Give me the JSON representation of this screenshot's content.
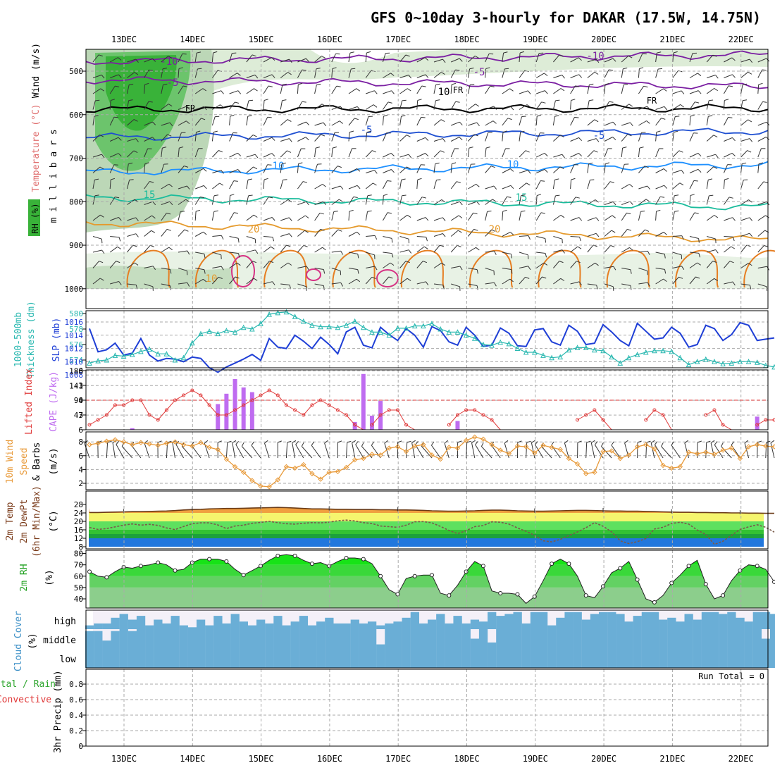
{
  "header": {
    "title": "GFS 0~10day 3-hourly for DAKAR (17.5W, 14.75N)"
  },
  "colors": {
    "cross_section": [
      "#7b1fa2",
      "#000000",
      "#1e4fd1",
      "#1e90ff",
      "#1abc9c",
      "#e59a2c",
      "#e67e22",
      "#d63384"
    ],
    "rh_shading": [
      "#d9ead3",
      "#bcd7b7",
      "#8fcf8f",
      "#6cc46c",
      "#39b239"
    ],
    "slp": "#1f3fd6",
    "thickness": "#29b8b0",
    "lifted_index": "#e03a3a",
    "cape": "#bf6cf0",
    "wind_speed": "#e89a3a",
    "temp_bands": [
      "#2277dd",
      "#1ca13c",
      "#33c233",
      "#5fe05f",
      "#f5f56e",
      "#f0a040"
    ],
    "rh_fill": [
      "#8cce8c",
      "#63d163",
      "#3ad83a",
      "#17e317"
    ],
    "cloud": "#6aaed6",
    "grid": "#aaaaaa"
  },
  "chart_data": [
    {
      "panel": "cross_section",
      "type": "line",
      "ylabel": "m i l l i b a r s",
      "ylabel_parts": [
        "Wind (m/s)",
        "Temperature (°C)",
        "RH (%)"
      ],
      "y_ticks": [
        "500",
        "600",
        "700",
        "800",
        "900",
        "1000"
      ],
      "ylim": [
        450,
        1030
      ],
      "x_tick_labels": [
        "13DEC",
        "14DEC",
        "15DEC",
        "16DEC",
        "17DEC",
        "18DEC",
        "19DEC",
        "20DEC",
        "21DEC",
        "22DEC"
      ],
      "contour_labels": [
        "-10",
        "-10",
        "-5",
        "-5",
        "FR",
        "FR",
        "FR",
        "-5",
        "-5",
        "10",
        "10",
        "15",
        "15",
        "20",
        "20",
        "10",
        "10"
      ],
      "isotherms": [
        {
          "level": -10,
          "color": "#7b1fa2",
          "p_start": 478,
          "p_end": 462
        },
        {
          "level": -5,
          "color": "#7b1fa2",
          "p_start": 520,
          "p_end": 535
        },
        {
          "level": 0,
          "color": "#000000",
          "p_start": 588,
          "p_end": 585
        },
        {
          "level": 5,
          "color": "#1e4fd1",
          "p_start": 652,
          "p_end": 638
        },
        {
          "level": 10,
          "color": "#1e90ff",
          "p_start": 732,
          "p_end": 715
        },
        {
          "level": 15,
          "color": "#1abc9c",
          "p_start": 790,
          "p_end": 812
        },
        {
          "level": 20,
          "color": "#e59a2c",
          "p_start": 848,
          "p_end": 888
        }
      ]
    },
    {
      "panel": "slp_thickness",
      "type": "line",
      "ylabel_left": [
        "1000-500mb",
        "Thickness (dm)"
      ],
      "ylabel_right": "SLP (mb)",
      "y_ticks_left": [
        "574",
        "576",
        "578",
        "580"
      ],
      "y_ticks_right": [
        "1008",
        "1010",
        "1012",
        "1014",
        "1016"
      ],
      "series": [
        {
          "name": "SLP (mb)",
          "values": [
            1015.0,
            1011.5,
            1011.8,
            1012.8,
            1011.0,
            1011.3,
            1013.5,
            1011.0,
            1010.1,
            1010.5,
            1010.4,
            1010.0,
            1010.7,
            1010.5,
            1009.1,
            1008.4,
            1009.2,
            1009.8,
            1010.4,
            1011.1,
            1010.2,
            1013.5,
            1012.2,
            1012.0,
            1014.0,
            1013.1,
            1012.0,
            1013.7,
            1012.6,
            1011.2,
            1014.5,
            1015.2,
            1012.5,
            1012.1,
            1015.2,
            1014.1,
            1013.2,
            1015.0,
            1014.0,
            1012.2,
            1015.3,
            1014.7,
            1013.0,
            1012.5,
            1015.2,
            1014.0,
            1012.3,
            1012.5,
            1015.1,
            1014.3,
            1012.4,
            1012.3,
            1014.8,
            1015.0,
            1013.0,
            1012.5,
            1015.5,
            1014.6,
            1012.6,
            1012.8,
            1015.6,
            1014.5,
            1013.2,
            1012.4,
            1015.8,
            1014.6,
            1013.4,
            1013.6,
            1015.2,
            1014.3,
            1012.2,
            1012.6,
            1015.5,
            1015.0,
            1013.2,
            1014.1,
            1015.9,
            1015.5,
            1013.2,
            1013.4,
            1013.6
          ]
        },
        {
          "name": "1000-500mb Thickness (dm)",
          "values": [
            573.6,
            573.9,
            574.0,
            574.6,
            574.5,
            574.7,
            575.1,
            575.4,
            574.8,
            574.8,
            574.0,
            574.3,
            576.2,
            577.4,
            577.7,
            577.4,
            577.8,
            577.6,
            578.2,
            578.0,
            578.7,
            579.9,
            580.1,
            580.2,
            579.6,
            579.0,
            578.5,
            578.3,
            578.3,
            578.2,
            578.5,
            579.0,
            578.2,
            577.6,
            577.6,
            577.2,
            578.1,
            578.1,
            578.4,
            578.4,
            578.7,
            578.0,
            577.6,
            577.6,
            577.2,
            576.8,
            576.0,
            575.9,
            576.3,
            576.1,
            575.5,
            575.0,
            575.0,
            574.6,
            574.3,
            574.4,
            575.3,
            575.6,
            575.6,
            575.3,
            575.2,
            574.4,
            573.6,
            574.3,
            574.7,
            575.0,
            575.2,
            575.2,
            575.1,
            574.3,
            573.4,
            573.8,
            574.1,
            573.8,
            573.5,
            573.6,
            573.8,
            573.8,
            573.7,
            573.3,
            573.1
          ]
        }
      ]
    },
    {
      "panel": "lifted_index_cape",
      "type": "bar",
      "ylabel_left": "Lifted Index",
      "ylabel_right": "CAPE (J/kg)",
      "y_ticks_left": [
        "-6",
        "-3",
        "0",
        "3",
        "6"
      ],
      "y_ticks_right": [
        "188",
        "141",
        "94",
        "47"
      ],
      "series": [
        {
          "name": "Lifted Index",
          "values": [
            5,
            4,
            3,
            1,
            1,
            0,
            0,
            3,
            4,
            2,
            0,
            -1,
            -2,
            -1,
            1,
            3,
            3,
            2,
            1,
            0,
            -1,
            -2,
            -1,
            1,
            2,
            3,
            1,
            0,
            1,
            2,
            3,
            5,
            6,
            5,
            3,
            2,
            2,
            5,
            6,
            6,
            6,
            6,
            5,
            3,
            2,
            2,
            3,
            4,
            6,
            6,
            6,
            6,
            6,
            6,
            6,
            6,
            6,
            4,
            3,
            2,
            4,
            6,
            6,
            6,
            6,
            4,
            2,
            3,
            6,
            6,
            6,
            6,
            3,
            2,
            5,
            6,
            6,
            6,
            5,
            4,
            4
          ]
        },
        {
          "name": "CAPE (J/kg)",
          "values": [
            0,
            0,
            0,
            0,
            0,
            5,
            0,
            0,
            0,
            0,
            0,
            0,
            0,
            0,
            0,
            82,
            115,
            162,
            135,
            120,
            0,
            0,
            0,
            0,
            0,
            0,
            0,
            0,
            0,
            0,
            0,
            25,
            178,
            45,
            92,
            0,
            0,
            0,
            0,
            0,
            0,
            0,
            0,
            28,
            0,
            0,
            0,
            0,
            0,
            0,
            0,
            0,
            0,
            0,
            0,
            0,
            0,
            0,
            0,
            0,
            0,
            0,
            0,
            0,
            0,
            0,
            0,
            0,
            0,
            0,
            0,
            0,
            0,
            0,
            0,
            0,
            0,
            0,
            42,
            0,
            0
          ]
        }
      ]
    },
    {
      "panel": "wind_10m",
      "type": "line",
      "ylabel": [
        "10m Wind",
        "Speed",
        "& Barbs",
        "(m/s)"
      ],
      "y_ticks": [
        "2",
        "4",
        "6",
        "8"
      ],
      "series": [
        {
          "name": "Speed",
          "values": [
            7.6,
            7.8,
            8.1,
            8.3,
            8.0,
            7.6,
            7.9,
            7.7,
            7.5,
            7.8,
            8.0,
            7.6,
            7.4,
            7.9,
            7.2,
            6.9,
            5.5,
            4.4,
            3.6,
            2.4,
            1.6,
            1.5,
            2.5,
            4.4,
            4.2,
            4.7,
            3.4,
            2.6,
            3.6,
            3.7,
            4.3,
            5.4,
            5.6,
            6.2,
            6.1,
            7.1,
            7.3,
            6.6,
            7.4,
            7.6,
            6.1,
            5.5,
            7.2,
            7.1,
            8.2,
            8.7,
            8.4,
            7.6,
            6.8,
            6.3,
            7.4,
            7.3,
            6.4,
            7.5,
            7.2,
            6.9,
            5.6,
            4.8,
            3.4,
            3.6,
            6.6,
            6.7,
            5.6,
            6.1,
            7.3,
            7.6,
            7.0,
            4.6,
            4.2,
            4.4,
            6.5,
            6.3,
            6.5,
            6.2,
            6.8,
            7.1,
            5.6,
            7.3,
            7.6,
            7.4,
            7.3
          ]
        }
      ]
    },
    {
      "panel": "temperature_2m",
      "type": "area",
      "ylabel": [
        "2m Temp",
        "2m DewPt",
        "(6hr Min/Max)",
        "(°C)"
      ],
      "y_ticks": [
        "8",
        "12",
        "16",
        "20",
        "24",
        "28"
      ],
      "series": [
        {
          "name": "2m Temp",
          "values": [
            24.2,
            24.2,
            24.3,
            24.4,
            24.5,
            24.6,
            24.6,
            24.7,
            24.8,
            24.9,
            25.1,
            25.4,
            25.6,
            25.7,
            25.9,
            26.0,
            26.1,
            26.1,
            26.2,
            26.3,
            26.4,
            26.5,
            26.6,
            26.5,
            26.3,
            26.1,
            25.9,
            25.9,
            25.8,
            25.7,
            25.7,
            25.6,
            25.6,
            25.6,
            25.5,
            25.5,
            25.4,
            25.4,
            25.3,
            25.2,
            25.0,
            24.9,
            24.8,
            24.8,
            24.9,
            25.0,
            25.2,
            25.3,
            25.3,
            25.2,
            25.0,
            24.9,
            24.8,
            24.8,
            24.9,
            25.0,
            25.1,
            25.2,
            25.2,
            25.1,
            25.0,
            24.9,
            24.9,
            24.8,
            24.8,
            24.7,
            24.6,
            24.5,
            24.4,
            24.3,
            24.3,
            24.2,
            24.2,
            24.1,
            24.1,
            24.0,
            24.0,
            23.9,
            23.9,
            23.8,
            23.8
          ]
        },
        {
          "name": "2m DewPt",
          "values": [
            17.1,
            16.2,
            16.6,
            17.4,
            18.2,
            18.8,
            18.2,
            18.6,
            18.1,
            16.9,
            16.1,
            17.6,
            18.9,
            19.3,
            19.3,
            18.3,
            16.6,
            17.8,
            18.2,
            19.1,
            19.5,
            20.0,
            19.4,
            18.9,
            18.7,
            19.1,
            19.4,
            19.3,
            19.6,
            20.3,
            20.6,
            20.2,
            19.4,
            19.0,
            17.8,
            17.5,
            17.2,
            18.2,
            19.8,
            19.9,
            19.3,
            17.6,
            15.7,
            14.2,
            15.6,
            17.5,
            18.0,
            19.8,
            19.6,
            18.7,
            16.9,
            15.3,
            13.4,
            10.8,
            10.3,
            11.5,
            13.3,
            15.0,
            17.0,
            19.4,
            17.7,
            15.0,
            10.8,
            9.5,
            10.4,
            11.9,
            16.4,
            17.2,
            19.0,
            19.6,
            18.7,
            15.9,
            13.8,
            9.1,
            10.6,
            13.4,
            16.2,
            17.4,
            18.4,
            17.2,
            14.9
          ]
        }
      ]
    },
    {
      "panel": "rh_2m",
      "type": "area",
      "ylabel": [
        "2m RH",
        "(%)"
      ],
      "y_ticks": [
        "40",
        "50",
        "60",
        "70",
        "80"
      ],
      "series": [
        {
          "name": "2m RH",
          "values": [
            64,
            60,
            59,
            64,
            68,
            67,
            69,
            70,
            72,
            70,
            65,
            66,
            72,
            75,
            75,
            75,
            73,
            66,
            61,
            65,
            69,
            74,
            78,
            79,
            78,
            74,
            71,
            72,
            69,
            73,
            76,
            76,
            75,
            71,
            60,
            48,
            44,
            58,
            60,
            61,
            61,
            45,
            43,
            52,
            64,
            73,
            69,
            47,
            45,
            45,
            44,
            36,
            42,
            56,
            71,
            75,
            71,
            60,
            43,
            41,
            51,
            63,
            67,
            73,
            57,
            40,
            37,
            43,
            54,
            61,
            69,
            74,
            53,
            40,
            43,
            56,
            65,
            70,
            69,
            66,
            55
          ]
        }
      ]
    },
    {
      "panel": "cloud_cover",
      "type": "bar",
      "ylabel": [
        "Cloud Cover",
        "(%)"
      ],
      "row_labels": [
        "high",
        "middle",
        "low"
      ]
    },
    {
      "panel": "precip_3hr",
      "type": "bar",
      "ylabel": [
        "Total / Rain",
        "Convective",
        "3hr Precip (mm)"
      ],
      "y_ticks": [
        "0",
        "0.2",
        "0.4",
        "0.6",
        "0.8"
      ],
      "annotation": "Run Total = 0",
      "values": [
        0,
        0,
        0,
        0,
        0,
        0,
        0,
        0,
        0,
        0
      ]
    }
  ]
}
